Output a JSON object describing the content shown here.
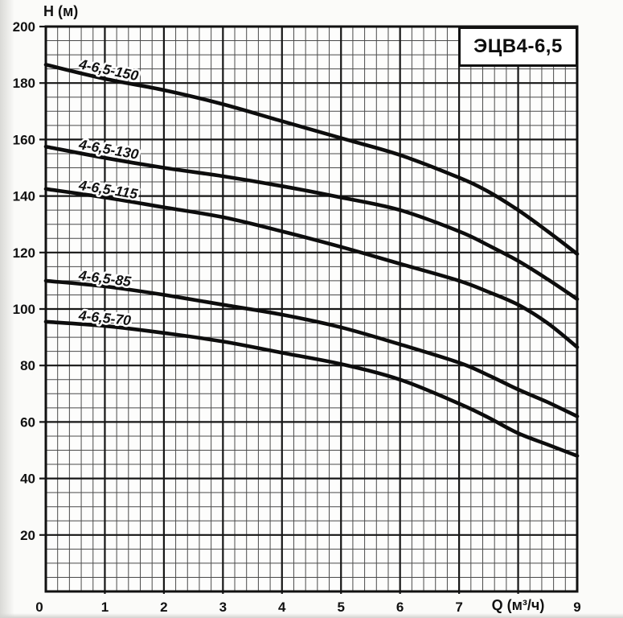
{
  "chart_data": {
    "type": "line",
    "title": "ЭЦВ4-6,5",
    "xlabel": "Q (м³/ч)",
    "ylabel": "Н (м)",
    "xlim": [
      0,
      9
    ],
    "ylim": [
      0,
      200
    ],
    "x_major_step": 1,
    "x_minor_step": 0.2,
    "y_major_step": 20,
    "y_minor_step": 5,
    "x_tick_labels": [
      "0",
      "1",
      "2",
      "3",
      "4",
      "5",
      "6",
      "7",
      "",
      "9"
    ],
    "y_tick_labels": [
      "20",
      "40",
      "60",
      "80",
      "100",
      "120",
      "140",
      "160",
      "180",
      "200"
    ],
    "xlabel_at_x": 8,
    "grid": true,
    "legend_position": "labels-on-curves",
    "colors": {
      "curve": "#0d0d0d",
      "grid_minor": "#4a4a4a",
      "grid_major": "#161616",
      "border": "#111111",
      "plot_bg": "#fdfdfc",
      "text": "#111111"
    },
    "series": [
      {
        "name": "4-6,5-150",
        "points": [
          [
            0,
            186.5
          ],
          [
            1,
            181.5
          ],
          [
            2,
            177.5
          ],
          [
            3,
            172.5
          ],
          [
            4,
            166.5
          ],
          [
            5,
            160.5
          ],
          [
            6,
            154.5
          ],
          [
            7,
            146.5
          ],
          [
            7.5,
            141.5
          ],
          [
            8,
            135
          ],
          [
            8.5,
            127.5
          ],
          [
            9,
            119.5
          ]
        ]
      },
      {
        "name": "4-6,5-130",
        "points": [
          [
            0,
            157.5
          ],
          [
            1,
            153.5
          ],
          [
            2,
            150
          ],
          [
            3,
            147
          ],
          [
            4,
            143.5
          ],
          [
            5,
            139.5
          ],
          [
            6,
            135
          ],
          [
            7,
            127.5
          ],
          [
            7.5,
            122.5
          ],
          [
            8,
            117
          ],
          [
            8.5,
            110.5
          ],
          [
            9,
            103.5
          ]
        ]
      },
      {
        "name": "4-6,5-115",
        "points": [
          [
            0,
            142.5
          ],
          [
            1,
            139.5
          ],
          [
            2,
            136
          ],
          [
            3,
            132.5
          ],
          [
            4,
            127.5
          ],
          [
            5,
            122
          ],
          [
            6,
            116
          ],
          [
            7,
            110
          ],
          [
            7.5,
            106
          ],
          [
            8,
            101.5
          ],
          [
            8.5,
            95
          ],
          [
            9,
            86.5
          ]
        ]
      },
      {
        "name": "4-6,5-85",
        "points": [
          [
            0,
            110
          ],
          [
            1,
            108
          ],
          [
            2,
            105
          ],
          [
            3,
            101.5
          ],
          [
            4,
            98
          ],
          [
            5,
            93.5
          ],
          [
            6,
            87.5
          ],
          [
            7,
            81
          ],
          [
            7.5,
            76.5
          ],
          [
            8,
            71.5
          ],
          [
            8.5,
            67
          ],
          [
            9,
            62
          ]
        ]
      },
      {
        "name": "4-6,5-70",
        "points": [
          [
            0,
            95.5
          ],
          [
            1,
            94
          ],
          [
            2,
            91.5
          ],
          [
            3,
            88.5
          ],
          [
            4,
            84.5
          ],
          [
            5,
            80.5
          ],
          [
            6,
            75
          ],
          [
            7,
            66.5
          ],
          [
            7.5,
            61.5
          ],
          [
            8,
            56
          ],
          [
            8.5,
            52
          ],
          [
            9,
            48
          ]
        ]
      }
    ]
  }
}
